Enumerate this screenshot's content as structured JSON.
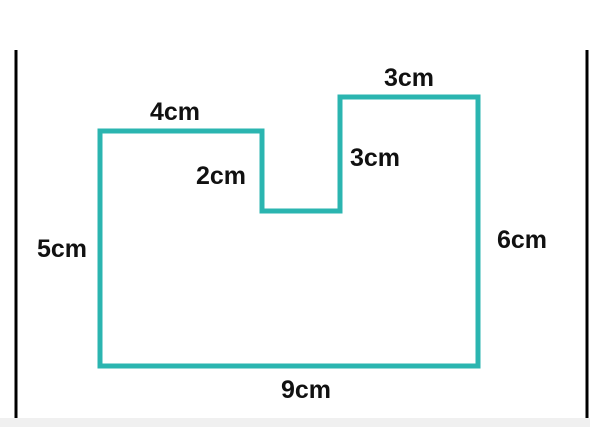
{
  "diagram": {
    "shape_color": "#2bb5b0",
    "border_color": "#000000",
    "labels": {
      "top_left": "4cm",
      "notch_left": "2cm",
      "notch_right": "3cm",
      "top_right": "3cm",
      "left": "5cm",
      "right": "6cm",
      "bottom": "9cm"
    }
  }
}
